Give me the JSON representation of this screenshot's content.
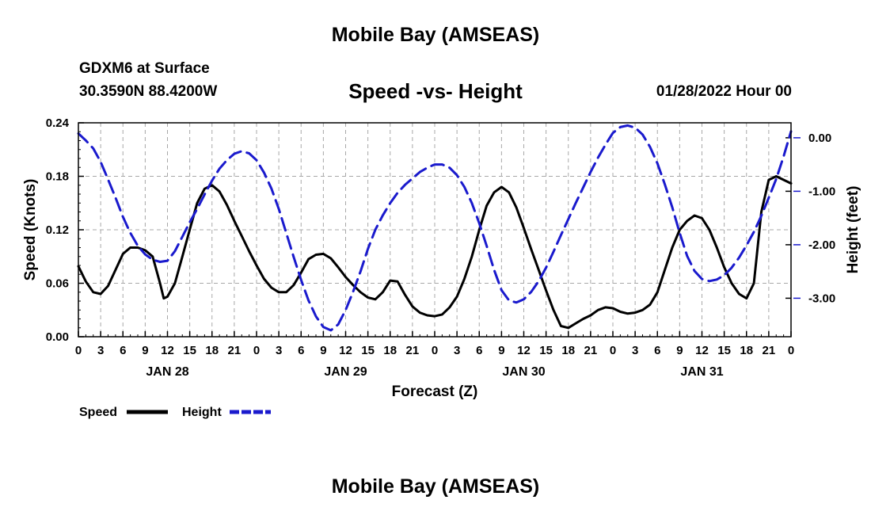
{
  "header": {
    "title": "Mobile Bay (AMSEAS)",
    "station": "GDXM6 at Surface",
    "coords": "30.3590N  88.4200W",
    "chart_title": "Speed -vs- Height",
    "forecast_time": "01/28/2022 Hour 00"
  },
  "footer": {
    "title": "Mobile Bay (AMSEAS)"
  },
  "chart_data": {
    "type": "line",
    "title": "Speed -vs- Height",
    "xlabel": "Forecast (Z)",
    "ylabel": "Speed (Knots)",
    "y2label": "Height (feet)",
    "x_range": [
      0,
      96
    ],
    "ylim": [
      0,
      0.24
    ],
    "y2lim": [
      -3.72,
      0.28
    ],
    "y_ticks": [
      "0.00",
      "0.06",
      "0.12",
      "0.18",
      "0.24"
    ],
    "y2_ticks": [
      "0.00",
      "-1.00",
      "-2.00",
      "-3.00"
    ],
    "x_tick_labels": [
      "0",
      "3",
      "6",
      "9",
      "12",
      "15",
      "18",
      "21",
      "0",
      "3",
      "6",
      "9",
      "12",
      "15",
      "18",
      "21",
      "0",
      "3",
      "6",
      "9",
      "12",
      "15",
      "18",
      "21",
      "0",
      "3",
      "6",
      "9",
      "12",
      "15",
      "18",
      "21",
      "0"
    ],
    "day_labels": [
      "JAN 28",
      "JAN 29",
      "JAN 30",
      "JAN 31"
    ],
    "grid": true,
    "series": [
      {
        "name": "Speed",
        "axis": "left",
        "color": "#000000",
        "style": "solid",
        "x": [
          0,
          1,
          2,
          3,
          4,
          5,
          6,
          7,
          8,
          9,
          10,
          11,
          11.5,
          12,
          13,
          14,
          15,
          16,
          17,
          18,
          19,
          20,
          21,
          22,
          23,
          24,
          25,
          26,
          27,
          28,
          29,
          30,
          31,
          32,
          33,
          34,
          35,
          36,
          37,
          38,
          39,
          40,
          41,
          42,
          43,
          44,
          45,
          46,
          47,
          48,
          49,
          50,
          51,
          52,
          53,
          54,
          55,
          56,
          57,
          58,
          59,
          60,
          61,
          62,
          63,
          64,
          65,
          66,
          67,
          68,
          69,
          70,
          71,
          72,
          73,
          74,
          75,
          76,
          77,
          78,
          79,
          80,
          81,
          82,
          83,
          84,
          85,
          86,
          87,
          88,
          89,
          90,
          91,
          92,
          93,
          94,
          95,
          96
        ],
        "values": [
          0.079,
          0.062,
          0.05,
          0.048,
          0.057,
          0.075,
          0.093,
          0.1,
          0.1,
          0.097,
          0.09,
          0.06,
          0.043,
          0.045,
          0.06,
          0.09,
          0.12,
          0.15,
          0.166,
          0.17,
          0.163,
          0.148,
          0.13,
          0.113,
          0.096,
          0.08,
          0.065,
          0.055,
          0.05,
          0.05,
          0.058,
          0.072,
          0.087,
          0.092,
          0.093,
          0.088,
          0.078,
          0.067,
          0.058,
          0.05,
          0.044,
          0.042,
          0.05,
          0.063,
          0.062,
          0.047,
          0.034,
          0.027,
          0.024,
          0.023,
          0.025,
          0.033,
          0.045,
          0.065,
          0.09,
          0.12,
          0.147,
          0.162,
          0.168,
          0.162,
          0.145,
          0.122,
          0.098,
          0.075,
          0.052,
          0.03,
          0.012,
          0.01,
          0.015,
          0.02,
          0.024,
          0.03,
          0.033,
          0.032,
          0.028,
          0.026,
          0.027,
          0.03,
          0.036,
          0.05,
          0.075,
          0.1,
          0.12,
          0.13,
          0.136,
          0.133,
          0.12,
          0.1,
          0.078,
          0.06,
          0.048,
          0.043,
          0.06,
          0.14,
          0.176,
          0.18,
          0.176,
          0.172
        ]
      },
      {
        "name": "Height",
        "axis": "right",
        "color": "#1a1acd",
        "style": "dashed",
        "x": [
          0,
          1,
          2,
          3,
          4,
          5,
          6,
          7,
          8,
          9,
          10,
          11,
          12,
          13,
          14,
          15,
          16,
          17,
          18,
          19,
          20,
          21,
          22,
          23,
          24,
          25,
          26,
          27,
          28,
          29,
          30,
          31,
          32,
          33,
          34,
          35,
          36,
          37,
          38,
          39,
          40,
          41,
          42,
          43,
          44,
          45,
          46,
          47,
          48,
          49,
          50,
          51,
          52,
          53,
          54,
          55,
          56,
          57,
          58,
          59,
          60,
          61,
          62,
          63,
          64,
          65,
          66,
          67,
          68,
          69,
          70,
          71,
          72,
          73,
          74,
          75,
          76,
          77,
          78,
          79,
          80,
          81,
          82,
          83,
          84,
          85,
          86,
          87,
          88,
          89,
          90,
          91,
          92,
          93,
          94,
          95,
          96
        ],
        "values": [
          0.08,
          -0.05,
          -0.2,
          -0.45,
          -0.78,
          -1.12,
          -1.48,
          -1.78,
          -2.02,
          -2.18,
          -2.28,
          -2.32,
          -2.3,
          -2.12,
          -1.85,
          -1.58,
          -1.33,
          -1.06,
          -0.8,
          -0.58,
          -0.42,
          -0.3,
          -0.25,
          -0.29,
          -0.42,
          -0.65,
          -0.95,
          -1.33,
          -1.78,
          -2.23,
          -2.66,
          -3.04,
          -3.34,
          -3.54,
          -3.6,
          -3.49,
          -3.22,
          -2.88,
          -2.5,
          -2.08,
          -1.72,
          -1.45,
          -1.22,
          -1.03,
          -0.88,
          -0.76,
          -0.64,
          -0.56,
          -0.5,
          -0.5,
          -0.56,
          -0.7,
          -0.92,
          -1.22,
          -1.6,
          -2.02,
          -2.47,
          -2.85,
          -3.04,
          -3.08,
          -3.02,
          -2.88,
          -2.68,
          -2.43,
          -2.13,
          -1.82,
          -1.52,
          -1.22,
          -0.93,
          -0.64,
          -0.37,
          -0.13,
          0.09,
          0.2,
          0.23,
          0.19,
          0.06,
          -0.17,
          -0.48,
          -0.87,
          -1.3,
          -1.78,
          -2.21,
          -2.49,
          -2.64,
          -2.68,
          -2.65,
          -2.57,
          -2.43,
          -2.24,
          -2.01,
          -1.76,
          -1.46,
          -1.12,
          -0.77,
          -0.35,
          0.12
        ]
      }
    ],
    "legend": {
      "placement": "bottom-left",
      "items": [
        {
          "name": "Speed",
          "color": "#000000",
          "style": "solid"
        },
        {
          "name": "Height",
          "color": "#1a1acd",
          "style": "dashed"
        }
      ]
    }
  }
}
